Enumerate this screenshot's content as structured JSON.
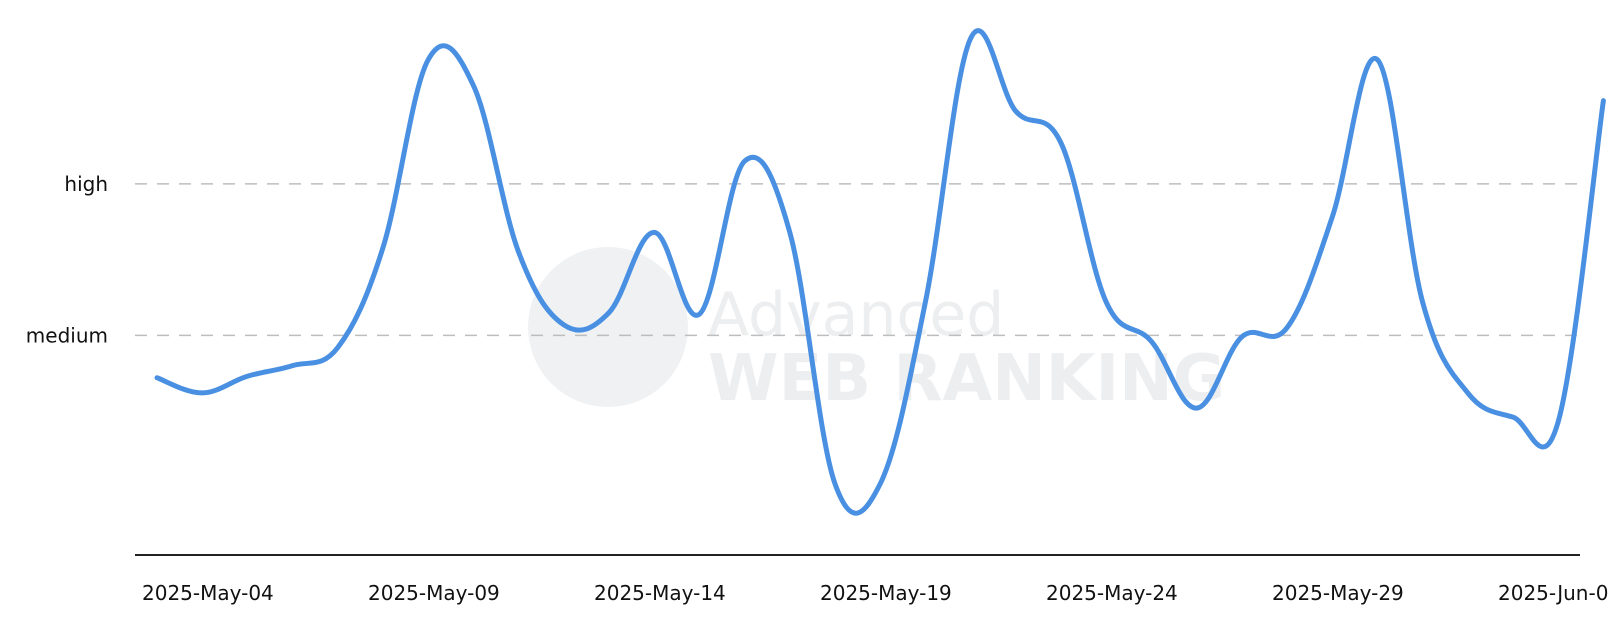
{
  "chart_data": {
    "type": "line",
    "series_color": "#4a90e2",
    "grid": "dashed reference lines at y-tick levels",
    "y_ticks": [
      {
        "label": "high",
        "value": 3
      },
      {
        "label": "medium",
        "value": 2
      }
    ],
    "ylim": [
      0.55,
      3.95
    ],
    "x_ticks": [
      "2025-May-04",
      "2025-May-09",
      "2025-May-14",
      "2025-May-19",
      "2025-May-24",
      "2025-May-29",
      "2025-Jun-0"
    ],
    "series": [
      {
        "values": [
          [
            0,
            1.72
          ],
          [
            1,
            1.62
          ],
          [
            2,
            1.73
          ],
          [
            3,
            1.8
          ],
          [
            4,
            1.92
          ],
          [
            5,
            2.58
          ],
          [
            6,
            3.82
          ],
          [
            7,
            3.65
          ],
          [
            8,
            2.55
          ],
          [
            9,
            2.07
          ],
          [
            10,
            2.15
          ],
          [
            11,
            2.68
          ],
          [
            12,
            2.14
          ],
          [
            13,
            3.15
          ],
          [
            14,
            2.68
          ],
          [
            15,
            1.02
          ],
          [
            16,
            1.02
          ],
          [
            17,
            2.22
          ],
          [
            18,
            3.96
          ],
          [
            19,
            3.48
          ],
          [
            20,
            3.27
          ],
          [
            21,
            2.22
          ],
          [
            22,
            1.96
          ],
          [
            23,
            1.52
          ],
          [
            24,
            1.99
          ],
          [
            25,
            2.05
          ],
          [
            26,
            2.78
          ],
          [
            27,
            3.82
          ],
          [
            28,
            2.22
          ],
          [
            29,
            1.62
          ],
          [
            30,
            1.46
          ],
          [
            31,
            1.43
          ],
          [
            32,
            3.55
          ]
        ]
      }
    ]
  },
  "watermark": {
    "line1": "Advanced",
    "line2": "WEB RANKING"
  }
}
